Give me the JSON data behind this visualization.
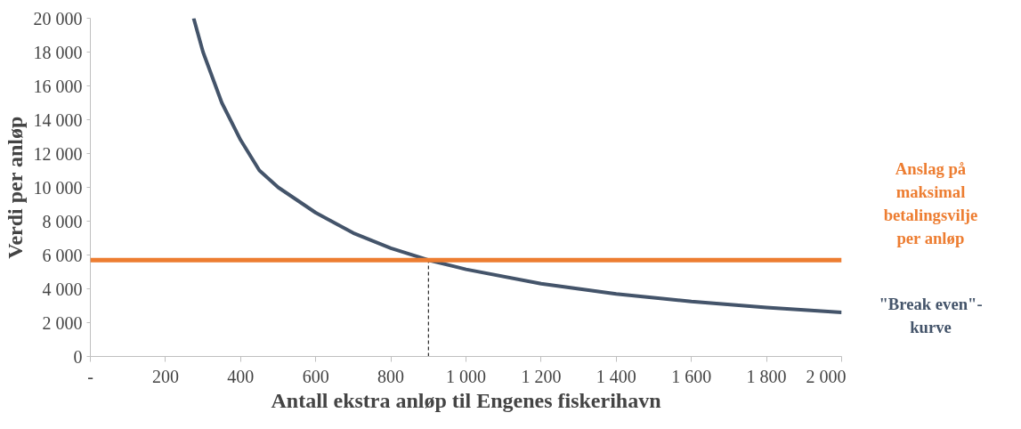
{
  "chart_data": {
    "type": "line",
    "xlabel": "Antall ekstra anløp til Engenes fiskerihavn",
    "ylabel": "Verdi per anløp",
    "xlim": [
      0,
      2000
    ],
    "ylim": [
      0,
      20000
    ],
    "xticks": [
      {
        "value": 0,
        "label": "-"
      },
      200,
      400,
      600,
      800,
      {
        "value": 1000,
        "label": "1 000"
      },
      {
        "value": 1200,
        "label": "1 200"
      },
      {
        "value": 1400,
        "label": "1 400"
      },
      {
        "value": 1600,
        "label": "1 600"
      },
      {
        "value": 1800,
        "label": "1 800"
      },
      {
        "value": 2000,
        "label": "2 000"
      }
    ],
    "yticks": [
      0,
      {
        "value": 2000,
        "label": "2 000"
      },
      {
        "value": 4000,
        "label": "4 000"
      },
      {
        "value": 6000,
        "label": "6 000"
      },
      {
        "value": 8000,
        "label": "8 000"
      },
      {
        "value": 10000,
        "label": "10 000"
      },
      {
        "value": 12000,
        "label": "12 000"
      },
      {
        "value": 14000,
        "label": "14 000"
      },
      {
        "value": 16000,
        "label": "16 000"
      },
      {
        "value": 18000,
        "label": "18 000"
      },
      {
        "value": 20000,
        "label": "20 000"
      }
    ],
    "series": [
      {
        "name": "\"Break even\"-kurve",
        "color": "#44546a",
        "x": [
          275,
          300,
          350,
          400,
          450,
          500,
          600,
          700,
          800,
          900,
          1000,
          1200,
          1400,
          1600,
          1800,
          2000
        ],
        "values": [
          20000,
          18000,
          15000,
          12800,
          11000,
          10000,
          8500,
          7300,
          6400,
          5700,
          5150,
          4300,
          3700,
          3250,
          2900,
          2600
        ]
      },
      {
        "color": "#000000",
        "line_style": "dashed",
        "x": [
          900,
          900
        ],
        "values": [
          0,
          5700
        ]
      }
    ],
    "ref_lines": [
      {
        "axis": "y",
        "value": 5700,
        "label": "Anslag på maksimal betalingsvilje per anløp",
        "color": "#ed7d31"
      }
    ],
    "grid": false,
    "legend": false,
    "marker": "none",
    "line_style": "solid"
  }
}
